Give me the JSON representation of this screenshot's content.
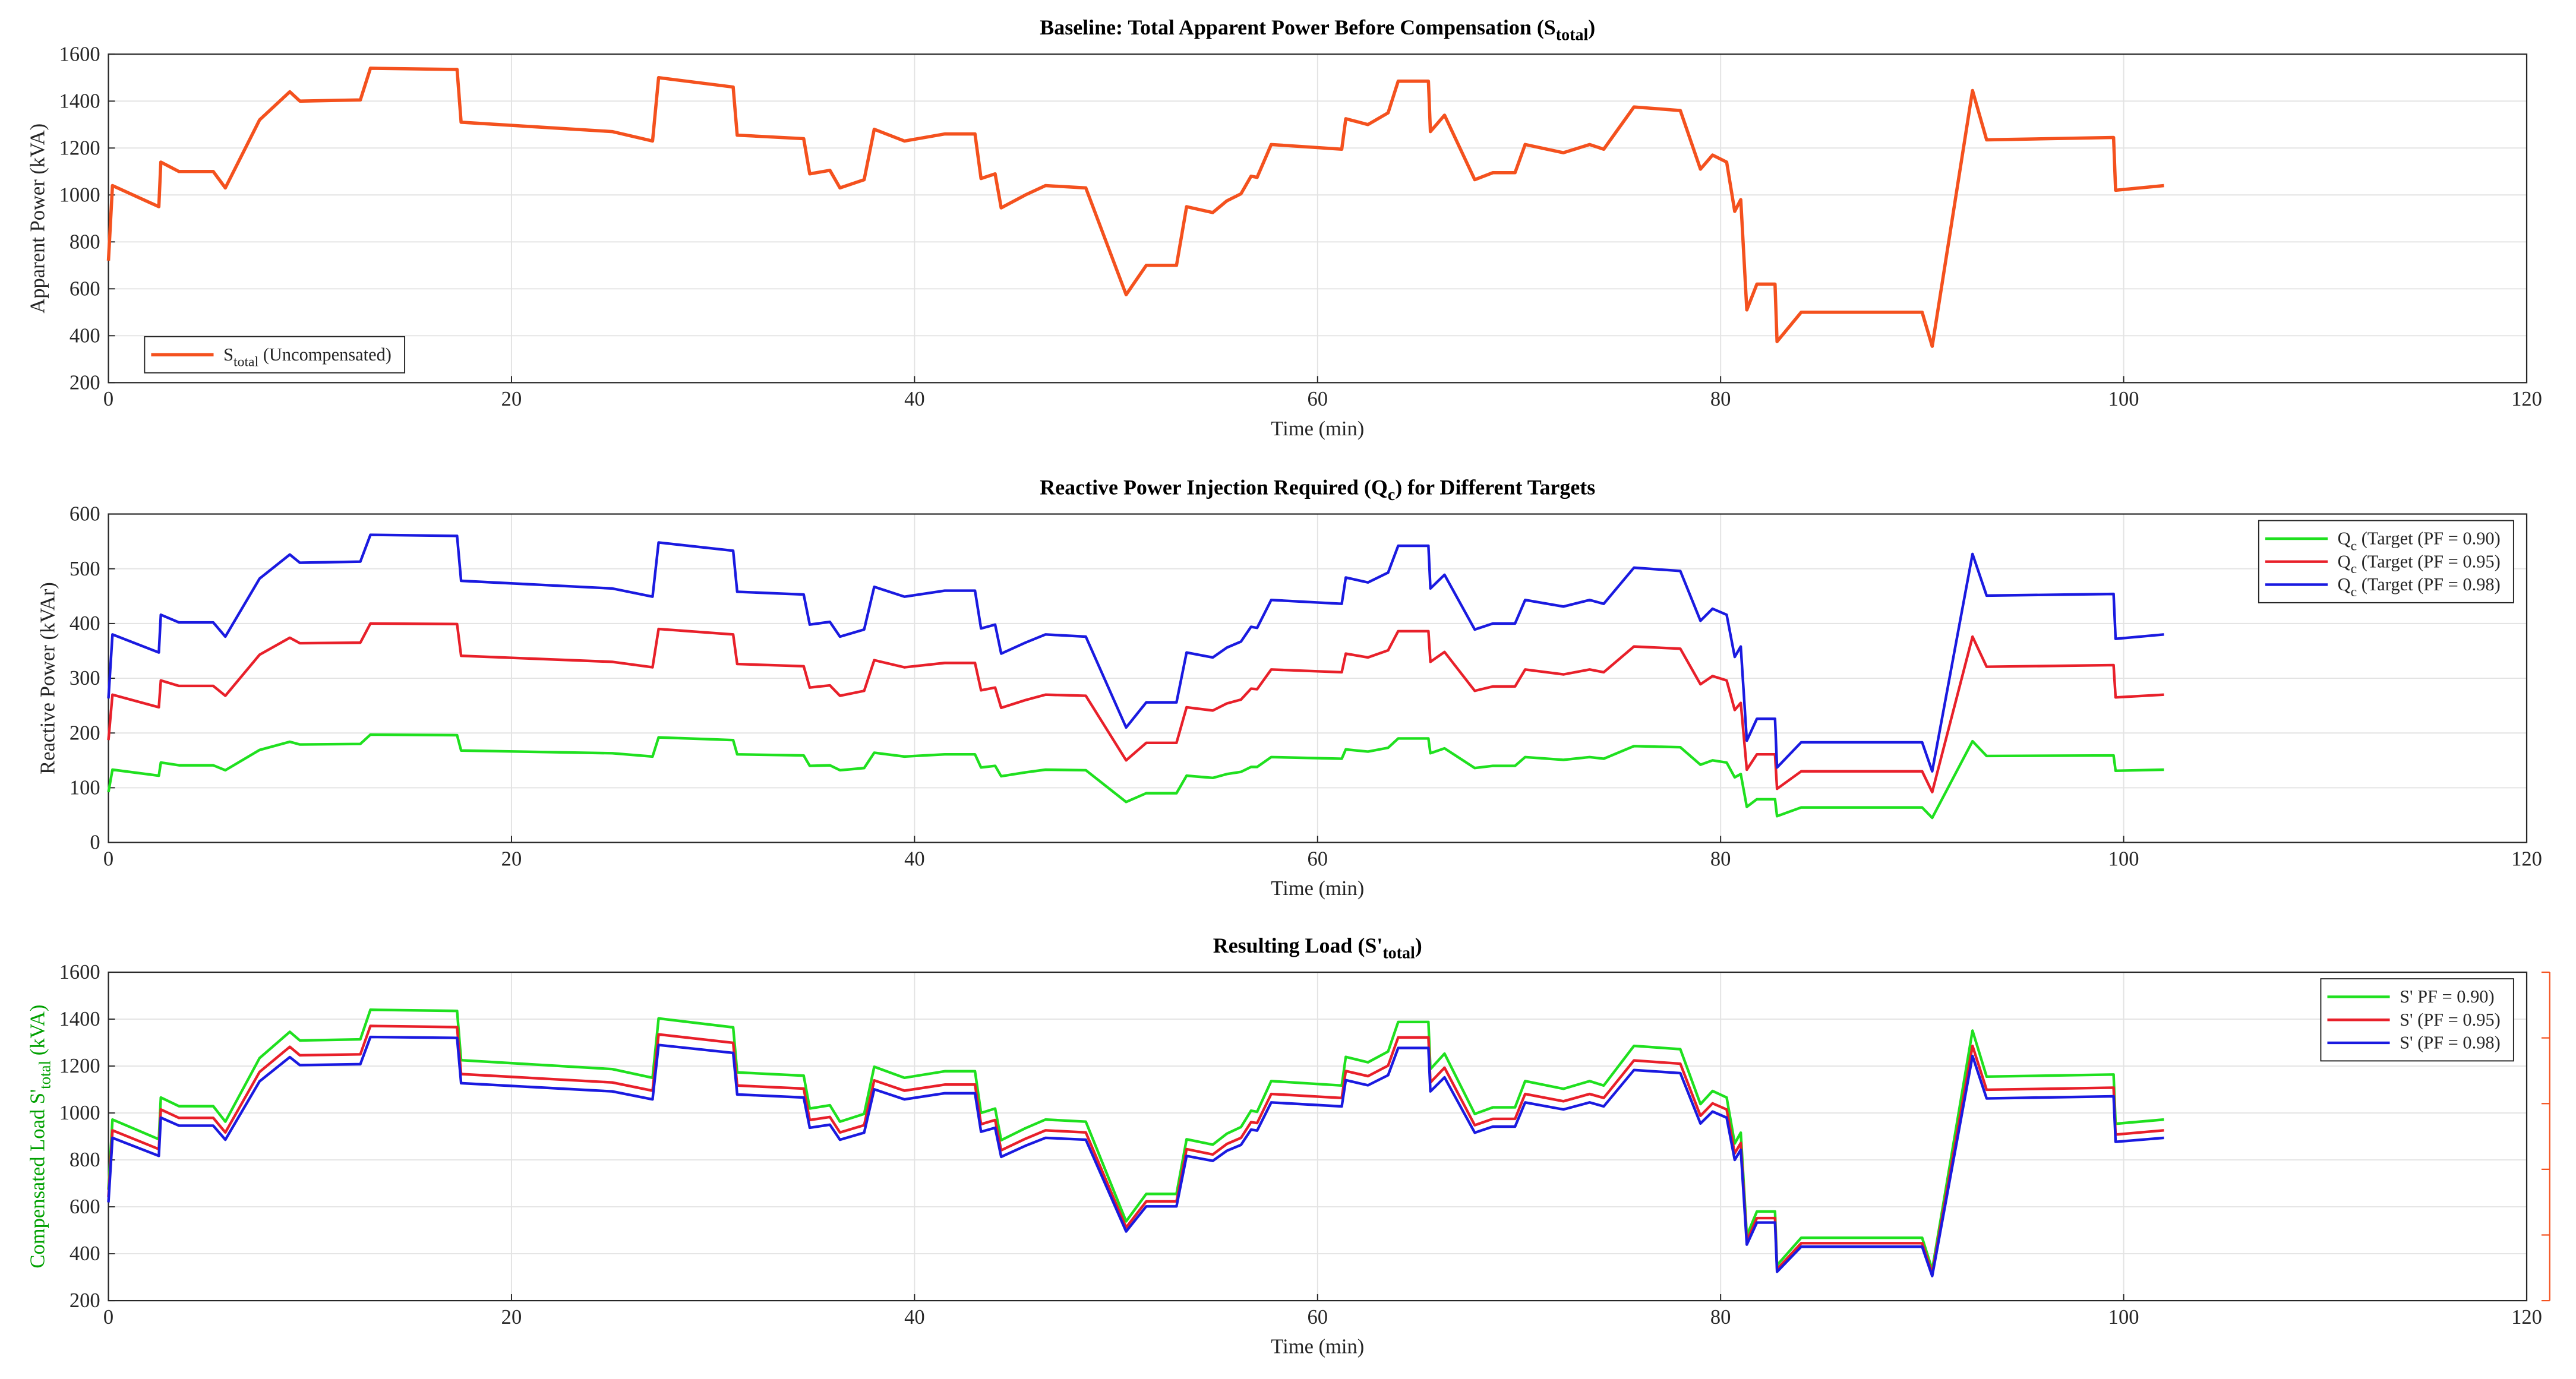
{
  "chart_data": [
    {
      "type": "line",
      "title": [
        "Baseline: Total Apparent Power Before Compensation (S",
        "total",
        ")"
      ],
      "xlabel": "Time (min)",
      "ylabel": "Apparent Power (kVA)",
      "x": [
        0,
        0.2,
        2.5,
        2.6,
        3.5,
        5.2,
        5.8,
        7.5,
        9,
        9.5,
        12.5,
        13,
        17.3,
        17.5,
        25,
        27,
        27.3,
        31,
        31.2,
        34.5,
        34.8,
        35.8,
        36.3,
        37.5,
        38,
        39.5,
        41.5,
        43,
        43.3,
        44,
        44.3,
        45.5,
        46.5,
        48.5,
        50.5,
        51.5,
        53,
        53.5,
        54.8,
        55.5,
        56.2,
        56.7,
        57,
        57.7,
        61.2,
        61.4,
        62.5,
        63.5,
        64,
        65.5,
        65.6,
        66.3,
        67.8,
        68.7,
        69.8,
        70.3,
        72.2,
        73.5,
        74.2,
        75.7,
        78,
        79,
        79.6,
        80.3,
        80.7,
        81,
        81.3,
        81.8,
        82.7,
        82.8,
        84,
        90,
        90.5,
        92.5,
        93.2,
        99.5,
        99.6,
        102
      ],
      "xlim": [
        0,
        120
      ],
      "xticks": [
        0,
        20,
        40,
        60,
        80,
        100,
        120
      ],
      "ylim": [
        200,
        1600
      ],
      "yticks": [
        200,
        400,
        600,
        800,
        1000,
        1200,
        1400,
        1600
      ],
      "grid": true,
      "legend": "lower left",
      "series": [
        {
          "name": [
            "S",
            "total",
            " (Uncompensated)"
          ],
          "color": "#f4511e",
          "values": [
            720,
            1040,
            950,
            1140,
            1100,
            1100,
            1030,
            1320,
            1440,
            1400,
            1405,
            1540,
            1535,
            1310,
            1270,
            1230,
            1500,
            1460,
            1255,
            1240,
            1090,
            1105,
            1030,
            1065,
            1280,
            1230,
            1260,
            1260,
            1070,
            1090,
            945,
            1000,
            1040,
            1030,
            575,
            700,
            700,
            950,
            925,
            975,
            1005,
            1080,
            1075,
            1215,
            1195,
            1325,
            1300,
            1350,
            1485,
            1485,
            1270,
            1340,
            1065,
            1095,
            1095,
            1215,
            1180,
            1215,
            1195,
            1375,
            1360,
            1110,
            1170,
            1140,
            930,
            980,
            510,
            620,
            620,
            375,
            500,
            500,
            355,
            1445,
            1235,
            1245,
            1020,
            1040
          ]
        }
      ]
    },
    {
      "type": "line",
      "title": [
        "Reactive Power Injection Required (Q",
        "c",
        ") for Different Targets"
      ],
      "xlabel": "Time (min)",
      "ylabel": "Reactive Power (kVAr)",
      "x": [
        0,
        0.2,
        2.5,
        2.6,
        3.5,
        5.2,
        5.8,
        7.5,
        9,
        9.5,
        12.5,
        13,
        17.3,
        17.5,
        25,
        27,
        27.3,
        31,
        31.2,
        34.5,
        34.8,
        35.8,
        36.3,
        37.5,
        38,
        39.5,
        41.5,
        43,
        43.3,
        44,
        44.3,
        45.5,
        46.5,
        48.5,
        50.5,
        51.5,
        53,
        53.5,
        54.8,
        55.5,
        56.2,
        56.7,
        57,
        57.7,
        61.2,
        61.4,
        62.5,
        63.5,
        64,
        65.5,
        65.6,
        66.3,
        67.8,
        68.7,
        69.8,
        70.3,
        72.2,
        73.5,
        74.2,
        75.7,
        78,
        79,
        79.6,
        80.3,
        80.7,
        81,
        81.3,
        81.8,
        82.7,
        82.8,
        84,
        90,
        90.5,
        92.5,
        93.2,
        99.5,
        99.6,
        102
      ],
      "xlim": [
        0,
        120
      ],
      "xticks": [
        0,
        20,
        40,
        60,
        80,
        100,
        120
      ],
      "ylim": [
        0,
        600
      ],
      "yticks": [
        0,
        100,
        200,
        300,
        400,
        500,
        600
      ],
      "grid": true,
      "legend": "upper right",
      "series": [
        {
          "name": [
            "Q",
            "c",
            " (Target (PF = 0.90)"
          ],
          "color": "#1fe01f",
          "values": [
            92,
            133,
            122,
            146,
            141,
            141,
            132,
            169,
            184,
            179,
            180,
            197,
            196,
            168,
            163,
            157,
            192,
            187,
            161,
            159,
            140,
            141,
            132,
            136,
            164,
            157,
            161,
            161,
            137,
            140,
            121,
            128,
            133,
            132,
            74,
            90,
            90,
            122,
            118,
            125,
            129,
            138,
            138,
            156,
            153,
            170,
            166,
            173,
            190,
            190,
            163,
            172,
            136,
            140,
            140,
            156,
            151,
            156,
            153,
            176,
            174,
            142,
            150,
            146,
            119,
            125,
            65,
            79,
            79,
            48,
            64,
            64,
            45,
            185,
            158,
            159,
            131,
            133
          ]
        },
        {
          "name": [
            "Q",
            "c",
            " (Target (PF = 0.95)"
          ],
          "color": "#e8202a",
          "values": [
            187,
            270,
            247,
            296,
            286,
            286,
            268,
            343,
            374,
            364,
            365,
            400,
            399,
            341,
            330,
            320,
            390,
            380,
            326,
            322,
            283,
            287,
            268,
            277,
            333,
            320,
            328,
            328,
            278,
            283,
            246,
            260,
            270,
            268,
            150,
            182,
            182,
            247,
            241,
            254,
            261,
            281,
            280,
            316,
            311,
            345,
            338,
            351,
            386,
            386,
            330,
            348,
            277,
            285,
            285,
            316,
            307,
            316,
            311,
            358,
            354,
            289,
            304,
            296,
            242,
            255,
            133,
            161,
            161,
            98,
            130,
            130,
            92,
            376,
            321,
            324,
            265,
            270
          ]
        },
        {
          "name": [
            "Q",
            "c",
            " (Target (PF = 0.98)"
          ],
          "color": "#1a1ae0",
          "values": [
            263,
            380,
            347,
            416,
            402,
            402,
            376,
            482,
            526,
            511,
            513,
            562,
            560,
            478,
            464,
            449,
            548,
            533,
            458,
            453,
            398,
            403,
            376,
            389,
            467,
            449,
            460,
            460,
            391,
            398,
            345,
            365,
            380,
            376,
            210,
            256,
            256,
            347,
            338,
            356,
            367,
            394,
            392,
            443,
            436,
            484,
            475,
            493,
            542,
            542,
            464,
            489,
            389,
            400,
            400,
            443,
            431,
            443,
            436,
            502,
            496,
            405,
            427,
            416,
            339,
            358,
            186,
            226,
            226,
            137,
            183,
            183,
            130,
            527,
            451,
            454,
            372,
            380
          ]
        }
      ]
    },
    {
      "type": "line",
      "title": [
        "Resulting Load (S'",
        "total",
        ")"
      ],
      "xlabel": "Time (min)",
      "ylabel": [
        "Compensated Load S'",
        "total",
        " (kVA)"
      ],
      "ylabel_color": "#00a000",
      "right_axis_color": "#f4511e",
      "x": [
        0,
        0.2,
        2.5,
        2.6,
        3.5,
        5.2,
        5.8,
        7.5,
        9,
        9.5,
        12.5,
        13,
        17.3,
        17.5,
        25,
        27,
        27.3,
        31,
        31.2,
        34.5,
        34.8,
        35.8,
        36.3,
        37.5,
        38,
        39.5,
        41.5,
        43,
        43.3,
        44,
        44.3,
        45.5,
        46.5,
        48.5,
        50.5,
        51.5,
        53,
        53.5,
        54.8,
        55.5,
        56.2,
        56.7,
        57,
        57.7,
        61.2,
        61.4,
        62.5,
        63.5,
        64,
        65.5,
        65.6,
        66.3,
        67.8,
        68.7,
        69.8,
        70.3,
        72.2,
        73.5,
        74.2,
        75.7,
        78,
        79,
        79.6,
        80.3,
        80.7,
        81,
        81.3,
        81.8,
        82.7,
        82.8,
        84,
        90,
        90.5,
        92.5,
        93.2,
        99.5,
        99.6,
        102
      ],
      "xlim": [
        0,
        120
      ],
      "xticks": [
        0,
        20,
        40,
        60,
        80,
        100,
        120
      ],
      "ylim": [
        200,
        1600
      ],
      "yticks": [
        200,
        400,
        600,
        800,
        1000,
        1200,
        1400,
        1600
      ],
      "grid": true,
      "legend": "upper right",
      "series": [
        {
          "name": "S' PF = 0.90)",
          "color": "#1fe01f",
          "values": [
            673,
            972,
            888,
            1066,
            1029,
            1029,
            963,
            1234,
            1346,
            1309,
            1314,
            1440,
            1435,
            1225,
            1187,
            1150,
            1403,
            1365,
            1173,
            1159,
            1019,
            1033,
            963,
            996,
            1197,
            1150,
            1178,
            1178,
            1000,
            1019,
            884,
            935,
            972,
            963,
            538,
            655,
            655,
            888,
            865,
            912,
            940,
            1010,
            1005,
            1136,
            1117,
            1239,
            1216,
            1262,
            1388,
            1388,
            1187,
            1253,
            996,
            1024,
            1024,
            1136,
            1103,
            1136,
            1117,
            1286,
            1272,
            1038,
            1094,
            1066,
            870,
            916,
            477,
            580,
            580,
            351,
            468,
            468,
            332,
            1351,
            1155,
            1164,
            954,
            972
          ]
        },
        {
          "name": "S' (PF = 0.95)",
          "color": "#e8202a",
          "values": [
            641,
            926,
            846,
            1015,
            979,
            979,
            917,
            1175,
            1282,
            1246,
            1250,
            1371,
            1366,
            1166,
            1130,
            1095,
            1335,
            1299,
            1117,
            1104,
            970,
            983,
            917,
            948,
            1139,
            1095,
            1121,
            1121,
            952,
            970,
            841,
            890,
            926,
            917,
            512,
            623,
            623,
            846,
            823,
            868,
            894,
            961,
            957,
            1081,
            1064,
            1179,
            1157,
            1202,
            1322,
            1322,
            1130,
            1193,
            948,
            975,
            975,
            1081,
            1050,
            1081,
            1064,
            1224,
            1210,
            988,
            1041,
            1015,
            828,
            872,
            454,
            552,
            552,
            334,
            445,
            445,
            316,
            1286,
            1099,
            1108,
            908,
            926
          ]
        },
        {
          "name": "S' (PF = 0.98)",
          "color": "#1a1ae0",
          "values": [
            619,
            894,
            817,
            980,
            946,
            946,
            886,
            1135,
            1238,
            1204,
            1208,
            1324,
            1320,
            1127,
            1092,
            1058,
            1290,
            1256,
            1079,
            1066,
            937,
            950,
            886,
            916,
            1101,
            1058,
            1084,
            1084,
            920,
            937,
            813,
            860,
            894,
            886,
            495,
            602,
            602,
            817,
            796,
            839,
            864,
            929,
            925,
            1045,
            1028,
            1140,
            1118,
            1161,
            1277,
            1277,
            1092,
            1152,
            916,
            942,
            942,
            1045,
            1015,
            1045,
            1028,
            1183,
            1170,
            955,
            1006,
            980,
            800,
            843,
            439,
            533,
            533,
            323,
            430,
            430,
            305,
            1243,
            1062,
            1071,
            877,
            894
          ]
        }
      ]
    }
  ]
}
